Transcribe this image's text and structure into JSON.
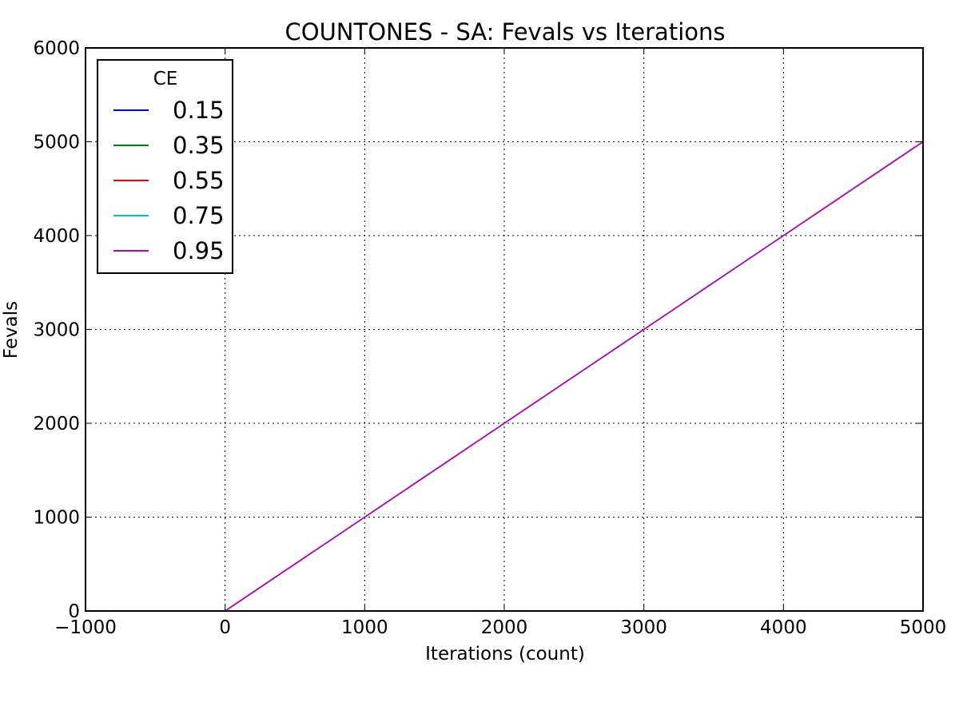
{
  "chart_data": {
    "type": "line",
    "title": "COUNTONES - SA: Fevals vs Iterations",
    "xlabel": "Iterations (count)",
    "ylabel": "Fevals",
    "xlim": [
      -1000,
      5000
    ],
    "ylim": [
      0,
      6000
    ],
    "xticks": [
      -1000,
      0,
      1000,
      2000,
      3000,
      4000,
      5000
    ],
    "yticks": [
      0,
      1000,
      2000,
      3000,
      4000,
      5000,
      6000
    ],
    "xtick_labels": [
      "−1000",
      "0",
      "1000",
      "2000",
      "3000",
      "4000",
      "5000"
    ],
    "ytick_labels": [
      "0",
      "1000",
      "2000",
      "3000",
      "4000",
      "5000",
      "6000"
    ],
    "grid": true,
    "legend": {
      "title": "CE",
      "placement": "top-left"
    },
    "series": [
      {
        "name": "0.15",
        "color": "#0000ff",
        "x": [
          0,
          1000,
          2000,
          3000,
          4000,
          5000
        ],
        "y": [
          0,
          1000,
          2000,
          3000,
          4000,
          5000
        ]
      },
      {
        "name": "0.35",
        "color": "#008000",
        "x": [
          0,
          1000,
          2000,
          3000,
          4000,
          5000
        ],
        "y": [
          0,
          1000,
          2000,
          3000,
          4000,
          5000
        ]
      },
      {
        "name": "0.55",
        "color": "#ff0000",
        "x": [
          0,
          1000,
          2000,
          3000,
          4000,
          5000
        ],
        "y": [
          0,
          1000,
          2000,
          3000,
          4000,
          5000
        ]
      },
      {
        "name": "0.75",
        "color": "#00bfbf",
        "x": [
          0,
          1000,
          2000,
          3000,
          4000,
          5000
        ],
        "y": [
          0,
          1000,
          2000,
          3000,
          4000,
          5000
        ]
      },
      {
        "name": "0.95",
        "color": "#bf00bf",
        "x": [
          0,
          1000,
          2000,
          3000,
          4000,
          5000
        ],
        "y": [
          0,
          1000,
          2000,
          3000,
          4000,
          5000
        ]
      }
    ]
  }
}
